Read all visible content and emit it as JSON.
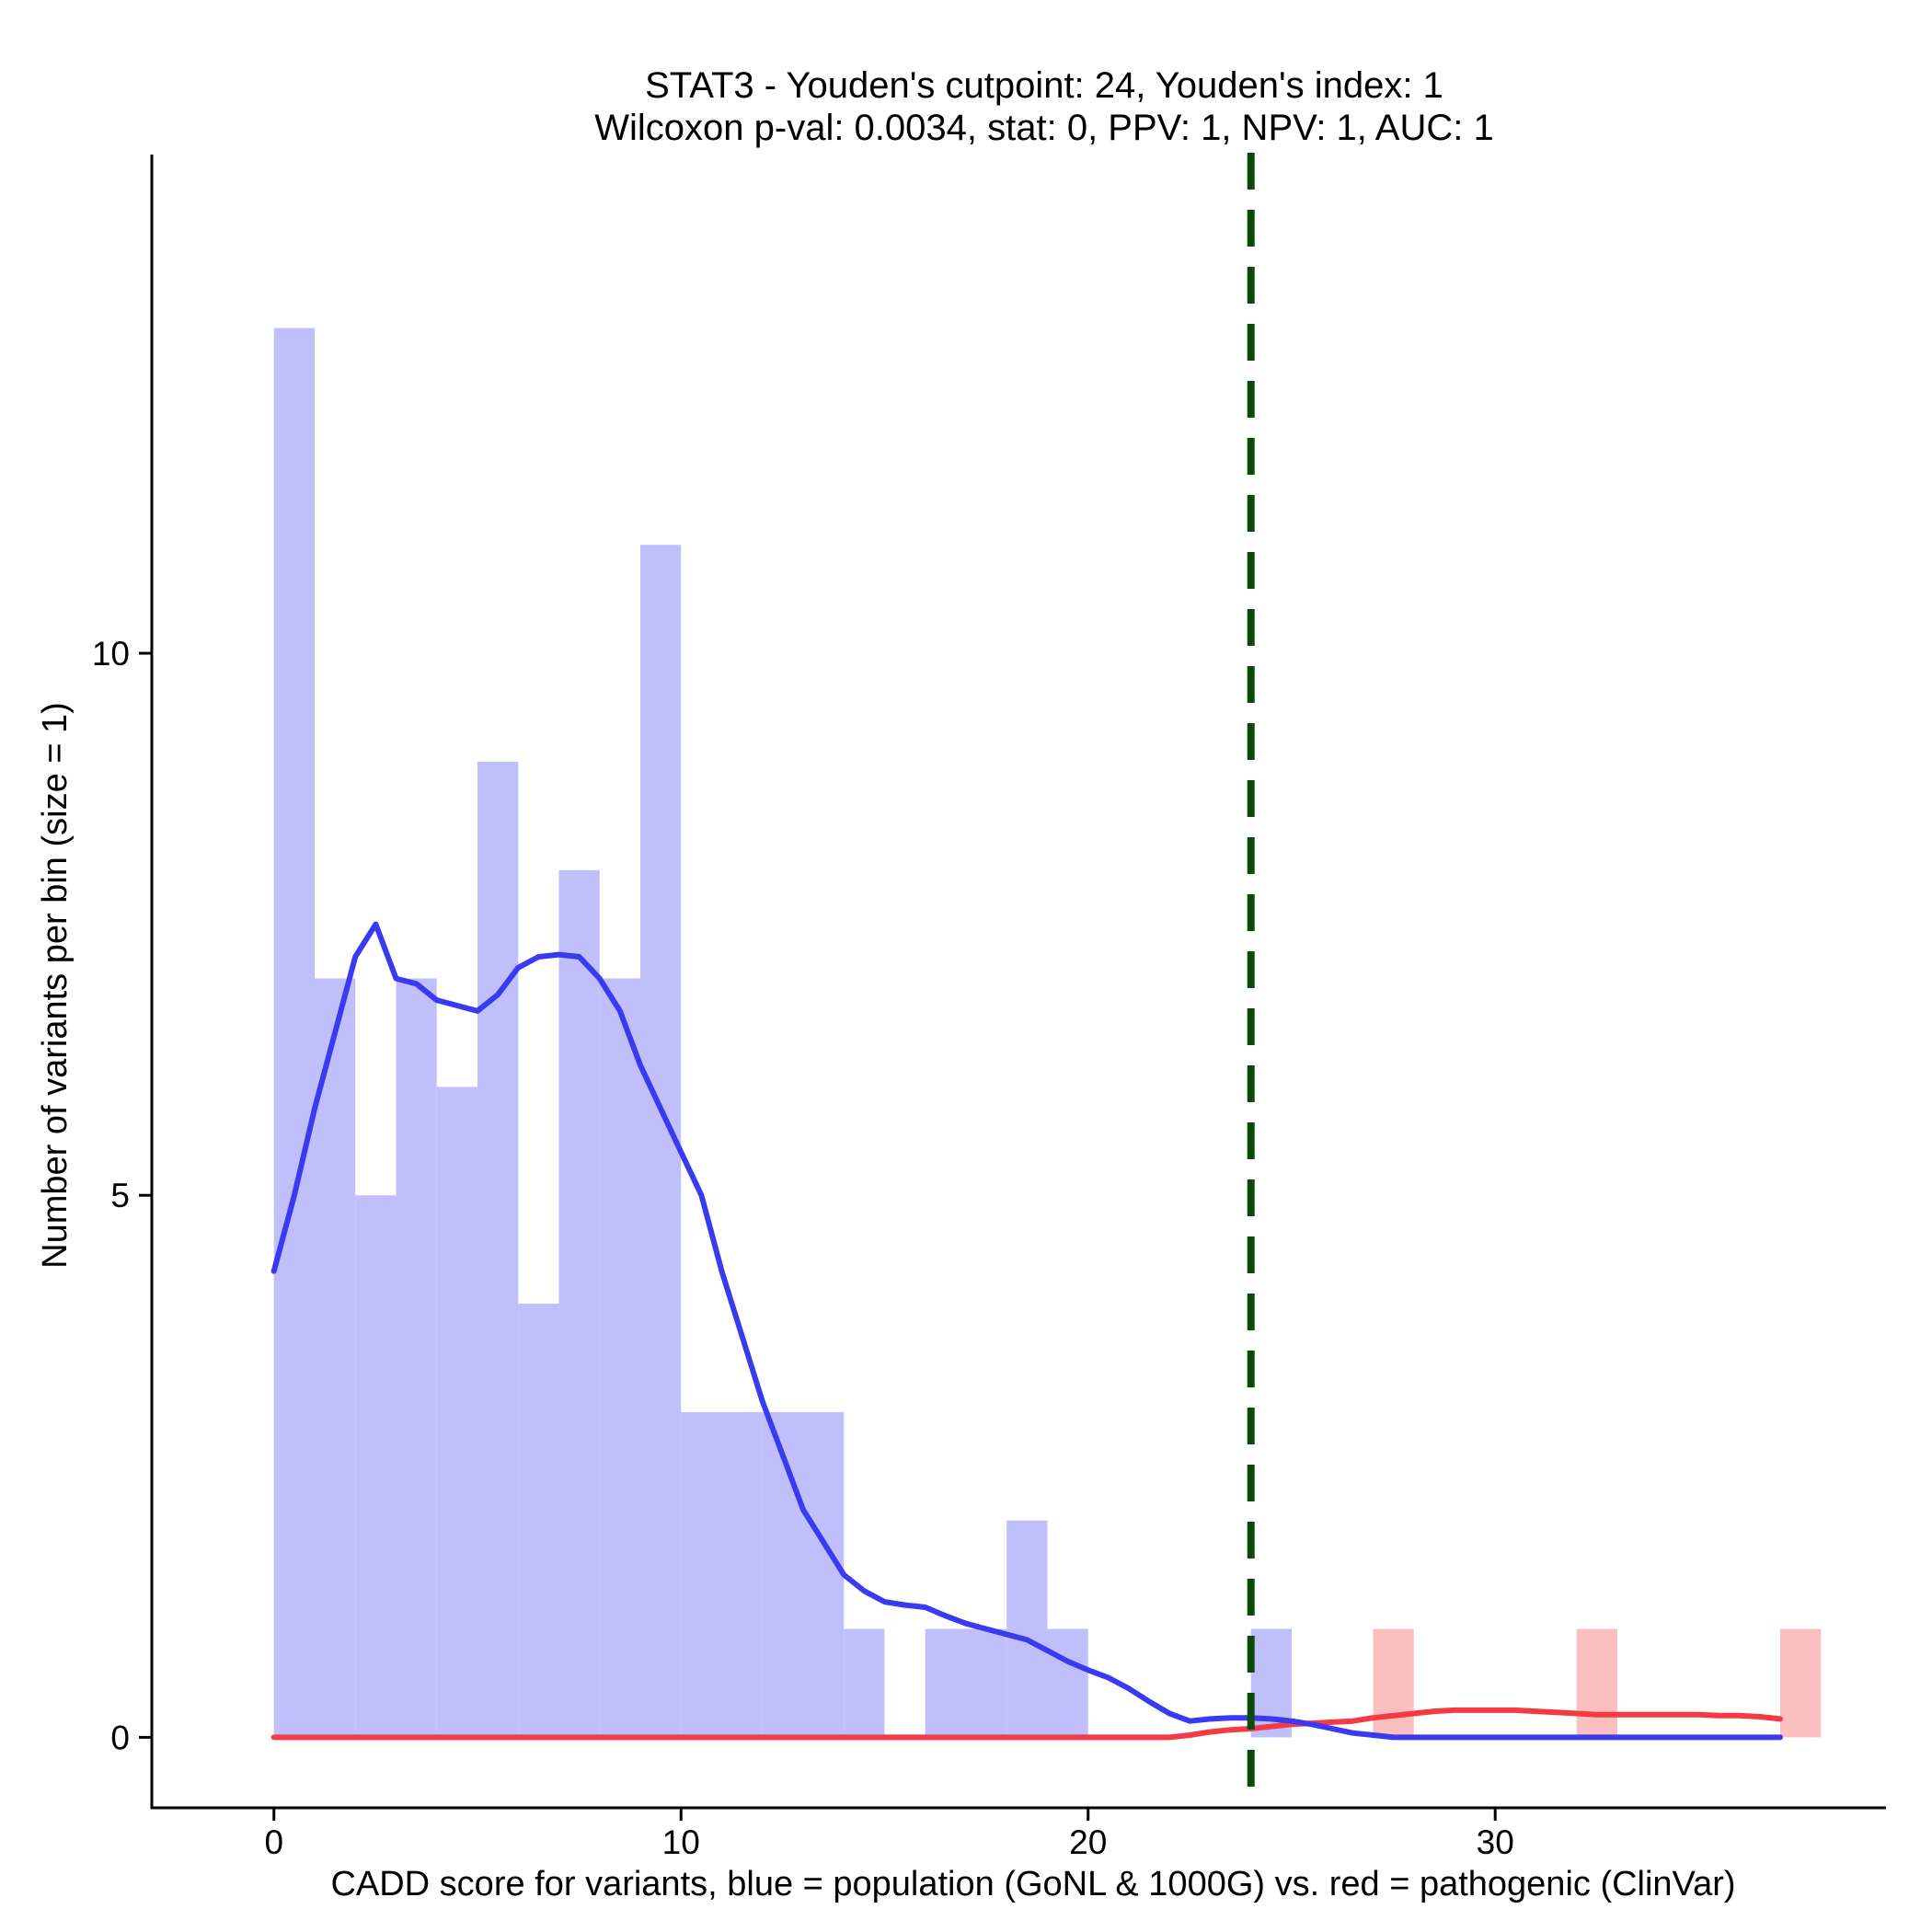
{
  "chart_data": {
    "type": "histogram",
    "title_line1": "STAT3 - Youden's cutpoint: 24, Youden's index: 1",
    "title_line2": "Wilcoxon p-val: 0.0034, stat: 0, PPV: 1, NPV: 1, AUC: 1",
    "xlabel": "CADD score for variants, blue = population (GoNL & 1000G) vs. red = pathogenic (ClinVar)",
    "ylabel": "Number of variants per bin (size = 1)",
    "xlim": [
      -3,
      39.6
    ],
    "ylim": [
      -0.65,
      14.6
    ],
    "xticks": [
      0,
      10,
      20,
      30
    ],
    "yticks": [
      0,
      5,
      10
    ],
    "bin_size": 1,
    "colors": {
      "population_bar": "#bfbffb",
      "pathogenic_bar": "#fcbfbf",
      "population_line": "#3a3af0",
      "pathogenic_line": "#f53a45",
      "cutpoint": "#0b4a0b"
    },
    "cutpoint": 24,
    "series": [
      {
        "name": "population (GoNL & 1000G)",
        "bins": [
          {
            "start": 0,
            "count": 13
          },
          {
            "start": 1,
            "count": 7
          },
          {
            "start": 2,
            "count": 5
          },
          {
            "start": 3,
            "count": 7
          },
          {
            "start": 4,
            "count": 6
          },
          {
            "start": 5,
            "count": 9
          },
          {
            "start": 6,
            "count": 4
          },
          {
            "start": 7,
            "count": 8
          },
          {
            "start": 8,
            "count": 7
          },
          {
            "start": 9,
            "count": 11
          },
          {
            "start": 10,
            "count": 3
          },
          {
            "start": 11,
            "count": 3
          },
          {
            "start": 12,
            "count": 3
          },
          {
            "start": 13,
            "count": 3
          },
          {
            "start": 14,
            "count": 1
          },
          {
            "start": 16,
            "count": 1
          },
          {
            "start": 17,
            "count": 1
          },
          {
            "start": 18,
            "count": 2
          },
          {
            "start": 19,
            "count": 1
          },
          {
            "start": 24,
            "count": 1
          }
        ],
        "density": [
          [
            0,
            4.3
          ],
          [
            0.5,
            5.0
          ],
          [
            1,
            5.8
          ],
          [
            1.5,
            6.5
          ],
          [
            2,
            7.2
          ],
          [
            2.5,
            7.5
          ],
          [
            3,
            7.0
          ],
          [
            3.5,
            6.95
          ],
          [
            4,
            6.8
          ],
          [
            4.5,
            6.75
          ],
          [
            5,
            6.7
          ],
          [
            5.5,
            6.85
          ],
          [
            6,
            7.1
          ],
          [
            6.5,
            7.2
          ],
          [
            7,
            7.22
          ],
          [
            7.5,
            7.2
          ],
          [
            8,
            7.0
          ],
          [
            8.5,
            6.7
          ],
          [
            9,
            6.2
          ],
          [
            9.5,
            5.8
          ],
          [
            10,
            5.4
          ],
          [
            10.5,
            5.0
          ],
          [
            11,
            4.3
          ],
          [
            11.5,
            3.7
          ],
          [
            12,
            3.1
          ],
          [
            12.5,
            2.6
          ],
          [
            13,
            2.1
          ],
          [
            13.5,
            1.8
          ],
          [
            14,
            1.5
          ],
          [
            14.5,
            1.35
          ],
          [
            15,
            1.25
          ],
          [
            15.5,
            1.22
          ],
          [
            16,
            1.2
          ],
          [
            16.5,
            1.12
          ],
          [
            17,
            1.05
          ],
          [
            17.5,
            1.0
          ],
          [
            18,
            0.95
          ],
          [
            18.5,
            0.9
          ],
          [
            19,
            0.8
          ],
          [
            19.5,
            0.7
          ],
          [
            20,
            0.62
          ],
          [
            20.5,
            0.55
          ],
          [
            21,
            0.45
          ],
          [
            21.5,
            0.33
          ],
          [
            22,
            0.22
          ],
          [
            22.5,
            0.15
          ],
          [
            23,
            0.17
          ],
          [
            23.5,
            0.18
          ],
          [
            24,
            0.18
          ],
          [
            24.5,
            0.17
          ],
          [
            25,
            0.15
          ],
          [
            25.5,
            0.12
          ],
          [
            26,
            0.08
          ],
          [
            26.5,
            0.04
          ],
          [
            27,
            0.02
          ],
          [
            27.5,
            0.0
          ],
          [
            28,
            0.0
          ],
          [
            30,
            0.0
          ],
          [
            32,
            0.0
          ],
          [
            34,
            0.0
          ],
          [
            37,
            0.0
          ]
        ]
      },
      {
        "name": "pathogenic (ClinVar)",
        "bins": [
          {
            "start": 27,
            "count": 1
          },
          {
            "start": 32,
            "count": 1
          },
          {
            "start": 37,
            "count": 1
          }
        ],
        "density": [
          [
            0,
            0.0
          ],
          [
            10,
            0.0
          ],
          [
            20,
            0.0
          ],
          [
            22,
            0.0
          ],
          [
            22.5,
            0.02
          ],
          [
            23,
            0.05
          ],
          [
            23.5,
            0.07
          ],
          [
            24,
            0.08
          ],
          [
            24.5,
            0.1
          ],
          [
            25,
            0.12
          ],
          [
            25.5,
            0.13
          ],
          [
            26,
            0.14
          ],
          [
            26.5,
            0.15
          ],
          [
            27,
            0.18
          ],
          [
            27.5,
            0.2
          ],
          [
            28,
            0.22
          ],
          [
            28.5,
            0.24
          ],
          [
            29,
            0.25
          ],
          [
            29.5,
            0.25
          ],
          [
            30,
            0.25
          ],
          [
            30.5,
            0.25
          ],
          [
            31,
            0.24
          ],
          [
            31.5,
            0.23
          ],
          [
            32,
            0.22
          ],
          [
            32.5,
            0.21
          ],
          [
            33,
            0.21
          ],
          [
            33.5,
            0.21
          ],
          [
            34,
            0.21
          ],
          [
            34.5,
            0.21
          ],
          [
            35,
            0.21
          ],
          [
            35.5,
            0.2
          ],
          [
            36,
            0.2
          ],
          [
            36.5,
            0.19
          ],
          [
            37,
            0.17
          ]
        ]
      }
    ]
  }
}
